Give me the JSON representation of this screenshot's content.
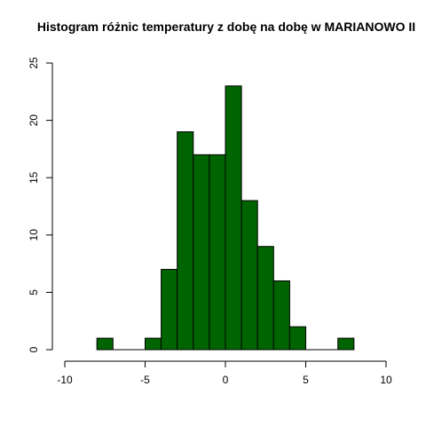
{
  "chart_data": {
    "type": "bar",
    "title": "Histogram różnic temperatury z dobę na dobę w MARIANOWO II",
    "xlabel": "",
    "ylabel": "",
    "bin_width": 1,
    "bins": [
      {
        "x0": -8,
        "x1": -7,
        "count": 1
      },
      {
        "x0": -7,
        "x1": -6,
        "count": 0
      },
      {
        "x0": -6,
        "x1": -5,
        "count": 0
      },
      {
        "x0": -5,
        "x1": -4,
        "count": 1
      },
      {
        "x0": -4,
        "x1": -3,
        "count": 7
      },
      {
        "x0": -3,
        "x1": -2,
        "count": 19
      },
      {
        "x0": -2,
        "x1": -1,
        "count": 17
      },
      {
        "x0": -1,
        "x1": 0,
        "count": 17
      },
      {
        "x0": 0,
        "x1": 1,
        "count": 23
      },
      {
        "x0": 1,
        "x1": 2,
        "count": 13
      },
      {
        "x0": 2,
        "x1": 3,
        "count": 9
      },
      {
        "x0": 3,
        "x1": 4,
        "count": 6
      },
      {
        "x0": 4,
        "x1": 5,
        "count": 2
      },
      {
        "x0": 5,
        "x1": 6,
        "count": 0
      },
      {
        "x0": 6,
        "x1": 7,
        "count": 0
      },
      {
        "x0": 7,
        "x1": 8,
        "count": 1
      }
    ],
    "xlim": [
      -10,
      10
    ],
    "ylim": [
      0,
      25
    ],
    "x_ticks": [
      "-10",
      "-5",
      "0",
      "5",
      "10"
    ],
    "y_ticks": [
      "0",
      "5",
      "10",
      "15",
      "20",
      "25"
    ],
    "bar_color": "#006400",
    "grid": false
  }
}
